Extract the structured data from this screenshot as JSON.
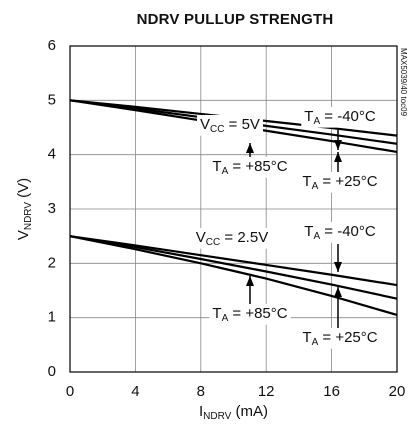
{
  "chart_data": {
    "type": "line",
    "title": "NDRV PULLUP STRENGTH",
    "side_note": "MAX5039/40 toc09",
    "x_label": [
      "I",
      "NDRV",
      " (mA)"
    ],
    "y_label": [
      "V",
      "NDRV",
      " (V)"
    ],
    "x": [
      0,
      4,
      8,
      12,
      16,
      20
    ],
    "xlim": [
      0,
      20
    ],
    "xticks": [
      0,
      4,
      8,
      12,
      16,
      20
    ],
    "ylim": [
      0,
      6
    ],
    "yticks": [
      0,
      1,
      2,
      3,
      4,
      5,
      6
    ],
    "grid": true,
    "series": [
      {
        "color": "#000000",
        "values": [
          5,
          4.88,
          4.75,
          4.62,
          4.49,
          4.35
        ]
      },
      {
        "color": "#000000",
        "values": [
          5,
          4.85,
          4.69,
          4.53,
          4.37,
          4.2
        ]
      },
      {
        "color": "#000000",
        "values": [
          5,
          4.82,
          4.63,
          4.44,
          4.25,
          4.05
        ]
      },
      {
        "color": "#000000",
        "values": [
          2.5,
          2.33,
          2.15,
          1.97,
          1.79,
          1.6
        ]
      },
      {
        "color": "#000000",
        "values": [
          2.5,
          2.3,
          2.08,
          1.85,
          1.61,
          1.35
        ]
      },
      {
        "color": "#000000",
        "values": [
          2.5,
          2.26,
          2.0,
          1.72,
          1.4,
          1.05
        ]
      }
    ],
    "annotations": [
      [
        "V",
        "CC",
        " = 5V"
      ],
      [
        "T",
        "A",
        " = -40°C"
      ],
      [
        "T",
        "A",
        " = +85°C"
      ],
      [
        "T",
        "A",
        " = +25°C"
      ],
      [
        "V",
        "CC",
        " = 2.5V"
      ],
      [
        "T",
        "A",
        " = -40°C"
      ],
      [
        "T",
        "A",
        " = +85°C"
      ],
      [
        "T",
        "A",
        " = +25°C"
      ]
    ]
  }
}
